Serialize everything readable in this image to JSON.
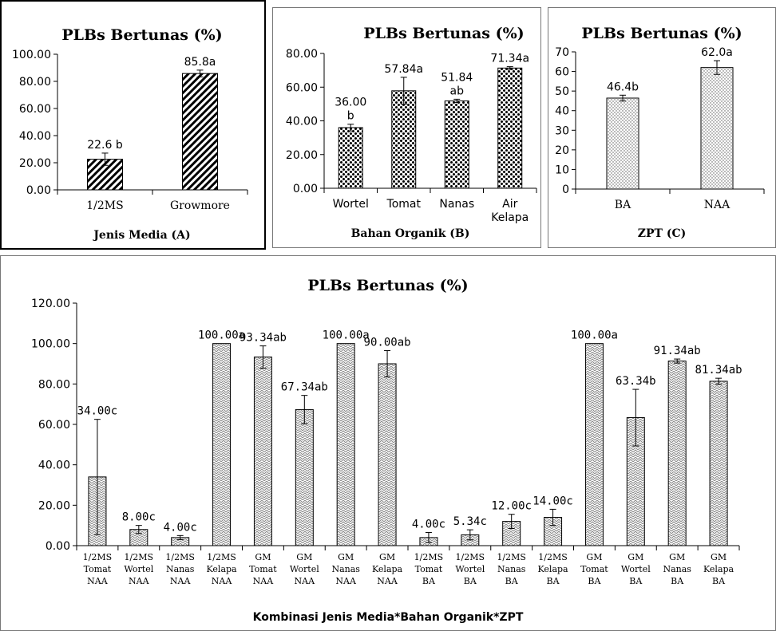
{
  "chart_data": [
    {
      "type": "bar",
      "title": "PLBs Bertunas (%)",
      "xlabel": "Jenis Media (A)",
      "ylabel": "",
      "categories": [
        "1/2MS",
        "Growmore"
      ],
      "values": [
        22.6,
        85.8
      ],
      "error": [
        4.5,
        2.5
      ],
      "data_labels": [
        [
          "22.6 b"
        ],
        [
          "85.8a"
        ]
      ],
      "ylim": [
        0,
        100
      ],
      "yticks": [
        "0.00",
        "20.00",
        "40.00",
        "60.00",
        "80.00",
        "100.00"
      ],
      "pattern": "diagonal-hatch",
      "grid": false
    },
    {
      "type": "bar",
      "title": "PLBs Bertunas (%)",
      "xlabel": "Bahan Organik (B)",
      "ylabel": "",
      "categories": [
        [
          "Wortel"
        ],
        [
          "Tomat"
        ],
        [
          "Nanas"
        ],
        [
          "Air",
          "Kelapa"
        ]
      ],
      "values": [
        36.0,
        57.84,
        51.84,
        71.34
      ],
      "error": [
        2.0,
        8.0,
        1.0,
        0.8
      ],
      "data_labels": [
        [
          "36.00",
          "b"
        ],
        [
          "57.84a"
        ],
        [
          "51.84",
          "ab"
        ],
        [
          "71.34a"
        ]
      ],
      "ylim": [
        0,
        80
      ],
      "yticks": [
        "0.00",
        "20.00",
        "40.00",
        "60.00",
        "80.00"
      ],
      "pattern": "dots",
      "grid": false
    },
    {
      "type": "bar",
      "title": "PLBs Bertunas (%)",
      "xlabel": "ZPT (C)",
      "ylabel": "",
      "categories": [
        "BA",
        "NAA"
      ],
      "values": [
        46.4,
        62.0
      ],
      "error": [
        1.5,
        3.5
      ],
      "data_labels": [
        [
          "46.4b"
        ],
        [
          "62.0a"
        ]
      ],
      "ylim": [
        0,
        70
      ],
      "yticks": [
        "0",
        "10",
        "20",
        "30",
        "40",
        "50",
        "60",
        "70"
      ],
      "pattern": "fine-dots",
      "grid": false
    },
    {
      "type": "bar",
      "title": "PLBs Bertunas (%)",
      "xlabel": "Kombinasi Jenis Media*Bahan Organik*ZPT",
      "ylabel": "",
      "categories": [
        [
          "1/2MS",
          "Tomat",
          "NAA"
        ],
        [
          "1/2MS",
          "Wortel",
          "NAA"
        ],
        [
          "1/2MS",
          "Nanas",
          "NAA"
        ],
        [
          "1/2MS",
          "Kelapa",
          "NAA"
        ],
        [
          "GM",
          "Tomat",
          "NAA"
        ],
        [
          "GM",
          "Wortel",
          "NAA"
        ],
        [
          "GM",
          "Nanas",
          "NAA"
        ],
        [
          "GM",
          "Kelapa",
          "NAA"
        ],
        [
          "1/2MS",
          "Tomat",
          "BA"
        ],
        [
          "1/2MS",
          "Wortel",
          "BA"
        ],
        [
          "1/2MS",
          "Nanas",
          "BA"
        ],
        [
          "1/2MS",
          "Kelapa",
          "BA"
        ],
        [
          "GM",
          "Tomat",
          "BA"
        ],
        [
          "GM",
          "Wortel",
          "BA"
        ],
        [
          "GM",
          "Nanas",
          "BA"
        ],
        [
          "GM",
          "Kelapa",
          "BA"
        ]
      ],
      "values": [
        34.0,
        8.0,
        4.0,
        100.0,
        93.34,
        67.34,
        100.0,
        90.0,
        4.0,
        5.34,
        12.0,
        14.0,
        100.0,
        63.34,
        91.34,
        81.34
      ],
      "error": [
        28.5,
        2.0,
        1.0,
        0,
        5.5,
        7.0,
        0,
        6.5,
        2.5,
        2.5,
        3.5,
        4.0,
        0,
        14.0,
        1.0,
        1.5
      ],
      "data_labels": [
        [
          "34.00c"
        ],
        [
          "8.00c"
        ],
        [
          "4.00c"
        ],
        [
          "100.00a"
        ],
        [
          "93.34ab"
        ],
        [
          "67.34ab"
        ],
        [
          "100.00a"
        ],
        [
          "90.00ab"
        ],
        [
          "4.00c"
        ],
        [
          "5.34c"
        ],
        [
          "12.00c"
        ],
        [
          "14.00c"
        ],
        [
          "100.00a"
        ],
        [
          "63.34b"
        ],
        [
          "91.34ab"
        ],
        [
          "81.34ab"
        ]
      ],
      "ylim": [
        0,
        120
      ],
      "yticks": [
        "0.00",
        "20.00",
        "40.00",
        "60.00",
        "80.00",
        "100.00",
        "120.00"
      ],
      "pattern": "zigzag-hatch",
      "grid": false
    }
  ]
}
